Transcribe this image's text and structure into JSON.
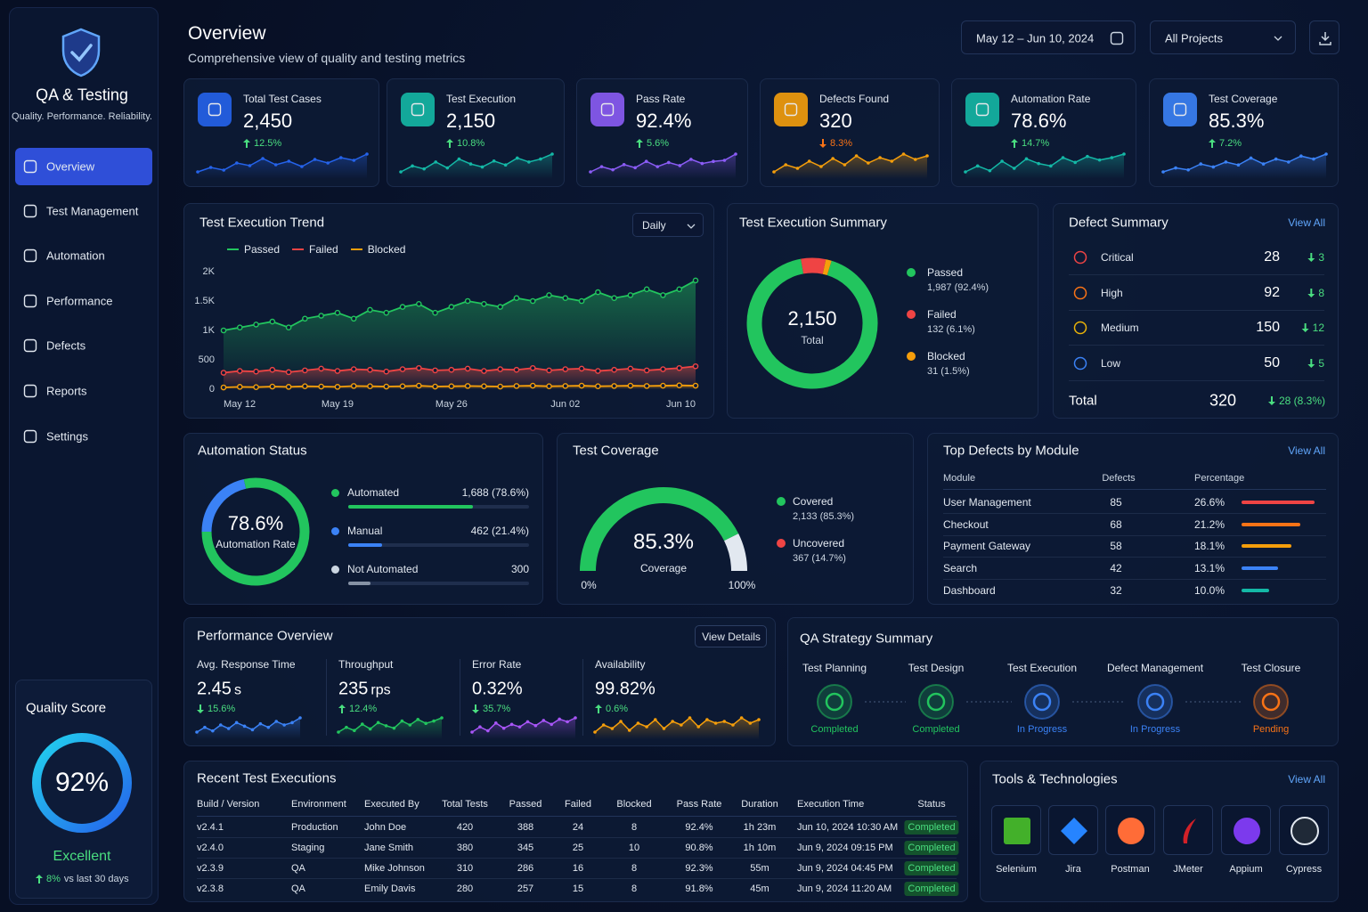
{
  "sidebar": {
    "brand": "QA & Testing",
    "tagline": "Quality. Performance. Reliability.",
    "nav": [
      {
        "label": "Overview",
        "active": true
      },
      {
        "label": "Test Management"
      },
      {
        "label": "Automation"
      },
      {
        "label": "Performance"
      },
      {
        "label": "Defects"
      },
      {
        "label": "Reports"
      },
      {
        "label": "Settings"
      }
    ]
  },
  "quality_score": {
    "title": "Quality Score",
    "value": "92%",
    "rating": "Excellent",
    "change": "8%",
    "change_note": "vs last 30 days"
  },
  "header": {
    "title": "Overview",
    "subtitle": "Comprehensive view of quality and testing metrics",
    "date_range": "May 12 – Jun 10, 2024",
    "project": "All Projects"
  },
  "kpis": [
    {
      "label": "Total Test Cases",
      "value": "2,450",
      "change": "12.5%",
      "direction": "up",
      "change_color": "#4ade80",
      "color": "#2563eb",
      "spark": [
        40,
        45,
        42,
        50,
        47,
        55,
        48,
        52,
        46,
        54,
        50,
        56,
        53,
        60
      ]
    },
    {
      "label": "Test Execution",
      "value": "2,150",
      "change": "10.8%",
      "direction": "up",
      "change_color": "#4ade80",
      "color": "#14b8a6",
      "spark": [
        42,
        48,
        45,
        52,
        46,
        55,
        50,
        47,
        53,
        49,
        56,
        52,
        55,
        60
      ]
    },
    {
      "label": "Pass Rate",
      "value": "92.4%",
      "change": "5.6%",
      "direction": "up",
      "change_color": "#4ade80",
      "color": "#8b5cf6",
      "spark": [
        45,
        50,
        47,
        52,
        49,
        55,
        50,
        54,
        51,
        57,
        53,
        55,
        56,
        62
      ]
    },
    {
      "label": "Defects Found",
      "value": "320",
      "change": "8.3%",
      "direction": "down",
      "change_color": "#f97316",
      "color": "#f59e0b",
      "spark": [
        40,
        48,
        44,
        52,
        46,
        55,
        48,
        58,
        50,
        56,
        52,
        60,
        54,
        58
      ]
    },
    {
      "label": "Automation Rate",
      "value": "78.6%",
      "change": "14.7%",
      "direction": "up",
      "change_color": "#4ade80",
      "color": "#14b8a6",
      "spark": [
        45,
        50,
        46,
        54,
        48,
        56,
        52,
        50,
        57,
        53,
        58,
        55,
        57,
        60
      ]
    },
    {
      "label": "Test Coverage",
      "value": "85.3%",
      "change": "7.2%",
      "direction": "up",
      "change_color": "#4ade80",
      "color": "#3b82f6",
      "spark": [
        42,
        46,
        44,
        50,
        47,
        52,
        49,
        56,
        50,
        55,
        52,
        58,
        55,
        60
      ]
    }
  ],
  "execution_trend": {
    "type": "line",
    "title": "Test Execution Trend",
    "period": "Daily",
    "categories": [
      "May 12",
      null,
      null,
      null,
      null,
      null,
      null,
      "May 19",
      null,
      null,
      null,
      null,
      null,
      null,
      "May 26",
      null,
      null,
      null,
      null,
      null,
      null,
      "Jun 02",
      null,
      null,
      null,
      null,
      null,
      null,
      null,
      "Jun 10"
    ],
    "series": [
      {
        "name": "Passed",
        "color": "#22c55e",
        "values": [
          1000,
          1050,
          1100,
          1150,
          1050,
          1200,
          1250,
          1300,
          1200,
          1350,
          1300,
          1400,
          1450,
          1300,
          1400,
          1500,
          1450,
          1400,
          1550,
          1500,
          1600,
          1550,
          1500,
          1650,
          1550,
          1600,
          1700,
          1600,
          1700,
          1850
        ]
      },
      {
        "name": "Failed",
        "color": "#ef4444",
        "values": [
          280,
          310,
          300,
          330,
          290,
          320,
          350,
          310,
          340,
          330,
          300,
          340,
          360,
          320,
          330,
          350,
          310,
          340,
          330,
          360,
          320,
          340,
          350,
          310,
          330,
          350,
          320,
          340,
          360,
          390
        ]
      },
      {
        "name": "Blocked",
        "color": "#f59e0b",
        "values": [
          30,
          40,
          35,
          45,
          40,
          50,
          45,
          40,
          55,
          50,
          45,
          50,
          60,
          45,
          50,
          55,
          50,
          45,
          55,
          60,
          50,
          55,
          60,
          50,
          55,
          60,
          55,
          60,
          65,
          60
        ]
      }
    ],
    "ylim": [
      0,
      2000
    ],
    "yticks": [
      0,
      500,
      {
        "value": 1000,
        "label": "1K"
      },
      {
        "value": 1500,
        "label": "1.5K"
      },
      {
        "value": 2000,
        "label": "2K"
      }
    ],
    "grid": false
  },
  "execution_summary": {
    "type": "donut",
    "title": "Test Execution Summary",
    "total": "2,150",
    "total_label": "Total",
    "items": [
      {
        "name": "Passed",
        "count": 1987,
        "label": "1,987 (92.4%)",
        "color": "#22c55e"
      },
      {
        "name": "Failed",
        "count": 132,
        "label": "132 (6.1%)",
        "color": "#ef4444"
      },
      {
        "name": "Blocked",
        "count": 31,
        "label": "31 (1.5%)",
        "color": "#f59e0b"
      }
    ]
  },
  "defect_summary": {
    "title": "Defect Summary",
    "link": "View All",
    "rows": [
      {
        "name": "Critical",
        "count": 28,
        "change": 3,
        "color": "#ef4444"
      },
      {
        "name": "High",
        "count": 92,
        "change": 8,
        "color": "#f97316"
      },
      {
        "name": "Medium",
        "count": 150,
        "change": 12,
        "color": "#eab308"
      },
      {
        "name": "Low",
        "count": 50,
        "change": 5,
        "color": "#3b82f6"
      }
    ],
    "total": {
      "label": "Total",
      "count": 320,
      "change": "28 (8.3%)"
    }
  },
  "automation_status": {
    "type": "donut",
    "title": "Automation Status",
    "center": "78.6%",
    "center_label": "Automation Rate",
    "items": [
      {
        "name": "Automated",
        "count": 1688,
        "label": "1,688 (78.6%)",
        "color": "#22c55e"
      },
      {
        "name": "Manual",
        "count": 462,
        "label": "462 (21.4%)",
        "color": "#3b82f6"
      },
      {
        "name": "Not Automated",
        "count": 300,
        "label": "300",
        "color": "#cbd5e1"
      }
    ]
  },
  "test_coverage": {
    "type": "gauge",
    "title": "Test Coverage",
    "center": "85.3%",
    "center_label": "Coverage",
    "min_label": "0%",
    "max_label": "100%",
    "items": [
      {
        "name": "Covered",
        "count": 2133,
        "label": "2,133 (85.3%)",
        "color": "#22c55e"
      },
      {
        "name": "Uncovered",
        "count": 367,
        "label": "367 (14.7%)",
        "color": "#e2e8f0"
      }
    ]
  },
  "top_defects": {
    "title": "Top Defects by Module",
    "link": "View All",
    "headers": [
      "Module",
      "Defects",
      "Percentage"
    ],
    "rows": [
      {
        "module": "User Management",
        "defects": 85,
        "pct": 26.6,
        "pct_label": "26.6%",
        "color": "#ef4444"
      },
      {
        "module": "Checkout",
        "defects": 68,
        "pct": 21.2,
        "pct_label": "21.2%",
        "color": "#f97316"
      },
      {
        "module": "Payment Gateway",
        "defects": 58,
        "pct": 18.1,
        "pct_label": "18.1%",
        "color": "#f59e0b"
      },
      {
        "module": "Search",
        "defects": 42,
        "pct": 13.1,
        "pct_label": "13.1%",
        "color": "#3b82f6"
      },
      {
        "module": "Dashboard",
        "defects": 32,
        "pct": 10.0,
        "pct_label": "10.0%",
        "color": "#14b8a6"
      }
    ]
  },
  "performance": {
    "title": "Performance Overview",
    "link": "View Details",
    "metrics": [
      {
        "label": "Avg. Response Time",
        "value": "2.45",
        "unit": "s",
        "change": "15.6%",
        "direction": "down",
        "color": "#3b82f6",
        "spark": [
          30,
          34,
          31,
          36,
          33,
          38,
          35,
          32,
          37,
          34,
          39,
          36,
          38,
          42
        ]
      },
      {
        "label": "Throughput",
        "value": "235",
        "unit": "rps",
        "change": "12.4%",
        "direction": "up",
        "color": "#22c55e",
        "spark": [
          30,
          36,
          32,
          40,
          34,
          42,
          38,
          35,
          44,
          39,
          46,
          41,
          44,
          48
        ]
      },
      {
        "label": "Error Rate",
        "value": "0.32%",
        "unit": "",
        "change": "35.7%",
        "direction": "down",
        "color": "#a855f7",
        "spark": [
          30,
          34,
          31,
          37,
          33,
          36,
          34,
          38,
          35,
          39,
          36,
          40,
          38,
          41
        ]
      },
      {
        "label": "Availability",
        "value": "99.82%",
        "unit": "",
        "change": "0.6%",
        "direction": "up",
        "color": "#f59e0b",
        "spark": [
          32,
          36,
          34,
          38,
          33,
          37,
          35,
          39,
          34,
          38,
          36,
          40,
          35,
          39,
          37,
          38,
          36,
          40,
          37,
          39
        ]
      }
    ]
  },
  "qa_strategy": {
    "title": "QA Strategy Summary",
    "steps": [
      {
        "name": "Test Planning",
        "status": "Completed",
        "color": "#22c55e"
      },
      {
        "name": "Test Design",
        "status": "Completed",
        "color": "#22c55e"
      },
      {
        "name": "Test Execution",
        "status": "In Progress",
        "color": "#3b82f6"
      },
      {
        "name": "Defect Management",
        "status": "In Progress",
        "color": "#3b82f6"
      },
      {
        "name": "Test Closure",
        "status": "Pending",
        "color": "#f97316"
      }
    ]
  },
  "recent_executions": {
    "title": "Recent Test Executions",
    "headers": [
      "Build / Version",
      "Environment",
      "Executed By",
      "Total Tests",
      "Passed",
      "Failed",
      "Blocked",
      "Pass Rate",
      "Duration",
      "Execution Time",
      "Status"
    ],
    "rows": [
      [
        "v2.4.1",
        "Production",
        "John Doe",
        "420",
        "388",
        "24",
        "8",
        "92.4%",
        "1h 23m",
        "Jun 10, 2024 10:30 AM",
        "Completed"
      ],
      [
        "v2.4.0",
        "Staging",
        "Jane Smith",
        "380",
        "345",
        "25",
        "10",
        "90.8%",
        "1h 10m",
        "Jun 9, 2024 09:15 PM",
        "Completed"
      ],
      [
        "v2.3.9",
        "QA",
        "Mike Johnson",
        "310",
        "286",
        "16",
        "8",
        "92.3%",
        "55m",
        "Jun 9, 2024 04:45 PM",
        "Completed"
      ],
      [
        "v2.3.8",
        "QA",
        "Emily Davis",
        "280",
        "257",
        "15",
        "8",
        "91.8%",
        "45m",
        "Jun 9, 2024 11:20 AM",
        "Completed"
      ]
    ]
  },
  "tools": {
    "title": "Tools & Technologies",
    "link": "View All",
    "items": [
      {
        "name": "Selenium",
        "color": "#43b02a"
      },
      {
        "name": "Jira",
        "color": "#2684ff"
      },
      {
        "name": "Postman",
        "color": "#ff6c37"
      },
      {
        "name": "JMeter",
        "color": "#d22128"
      },
      {
        "name": "Appium",
        "color": "#7c3aed"
      },
      {
        "name": "Cypress",
        "color": "#1f2937"
      }
    ]
  }
}
